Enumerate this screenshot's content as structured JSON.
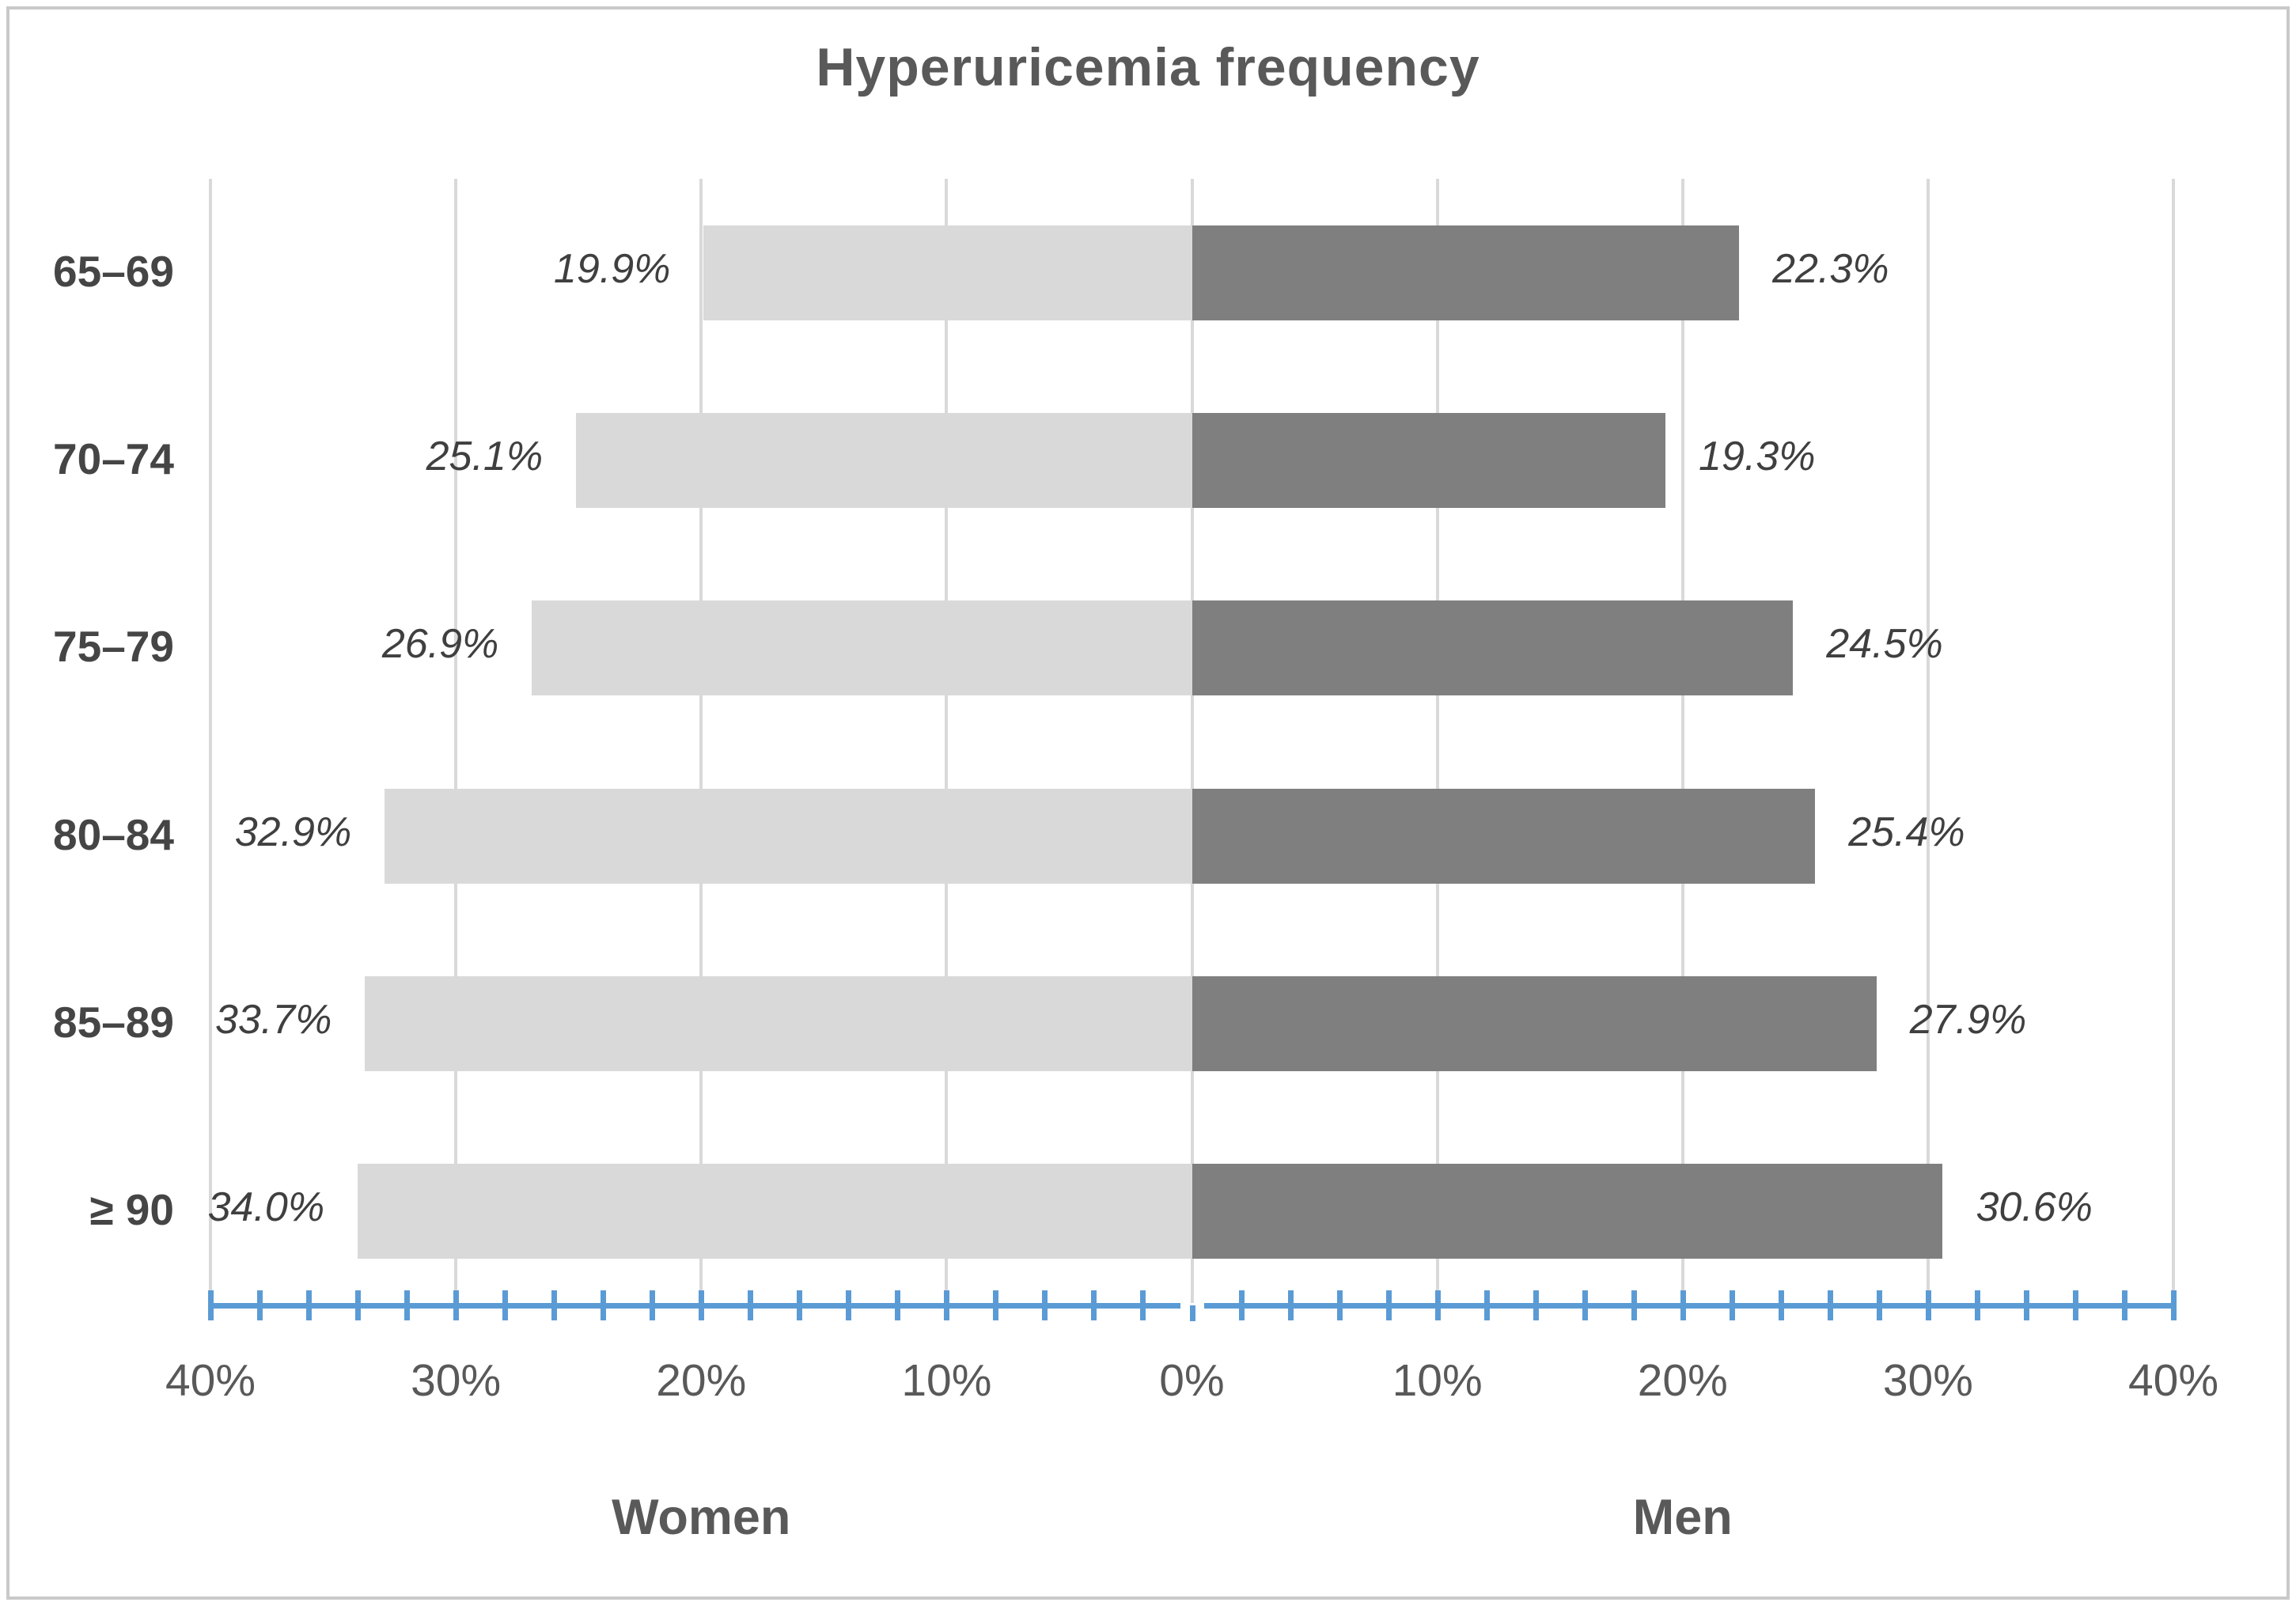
{
  "title": "Hyperuricemia frequency",
  "chart_data": {
    "type": "bar",
    "subtype": "population-pyramid",
    "title": "Hyperuricemia frequency",
    "categories": [
      "65–69",
      "70–74",
      "75–79",
      "80–84",
      "85–89",
      "≥ 90"
    ],
    "series": [
      {
        "name": "Women",
        "side": "left",
        "color": "#d9d9d9",
        "values": [
          19.9,
          25.1,
          26.9,
          32.9,
          33.7,
          34.0
        ],
        "labels": [
          "19.9%",
          "25.1%",
          "26.9%",
          "32.9%",
          "33.7%",
          "34.0%"
        ]
      },
      {
        "name": "Men",
        "side": "right",
        "color": "#7f7f7f",
        "values": [
          22.3,
          19.3,
          24.5,
          25.4,
          27.9,
          30.6
        ],
        "labels": [
          "22.3%",
          "19.3%",
          "24.5%",
          "25.4%",
          "27.9%",
          "30.6%"
        ]
      }
    ],
    "xlabel_left": "Women",
    "xlabel_right": "Men",
    "axis": {
      "max_percent_each_side": 40,
      "major_tick_step": 10,
      "minor_tick_step": 2,
      "tick_labels": [
        "40%",
        "30%",
        "20%",
        "10%",
        "0%",
        "10%",
        "20%",
        "30%",
        "40%"
      ]
    },
    "grid": true,
    "legend_position": "none"
  },
  "colors": {
    "axis_blue": "#5b9bd5",
    "gridline": "#d9d9d9",
    "bar_women": "#d9d9d9",
    "bar_men": "#7f7f7f",
    "label_text": "#3f3f3f",
    "axis_text": "#595959",
    "frame_border": "#c9c9c9"
  }
}
